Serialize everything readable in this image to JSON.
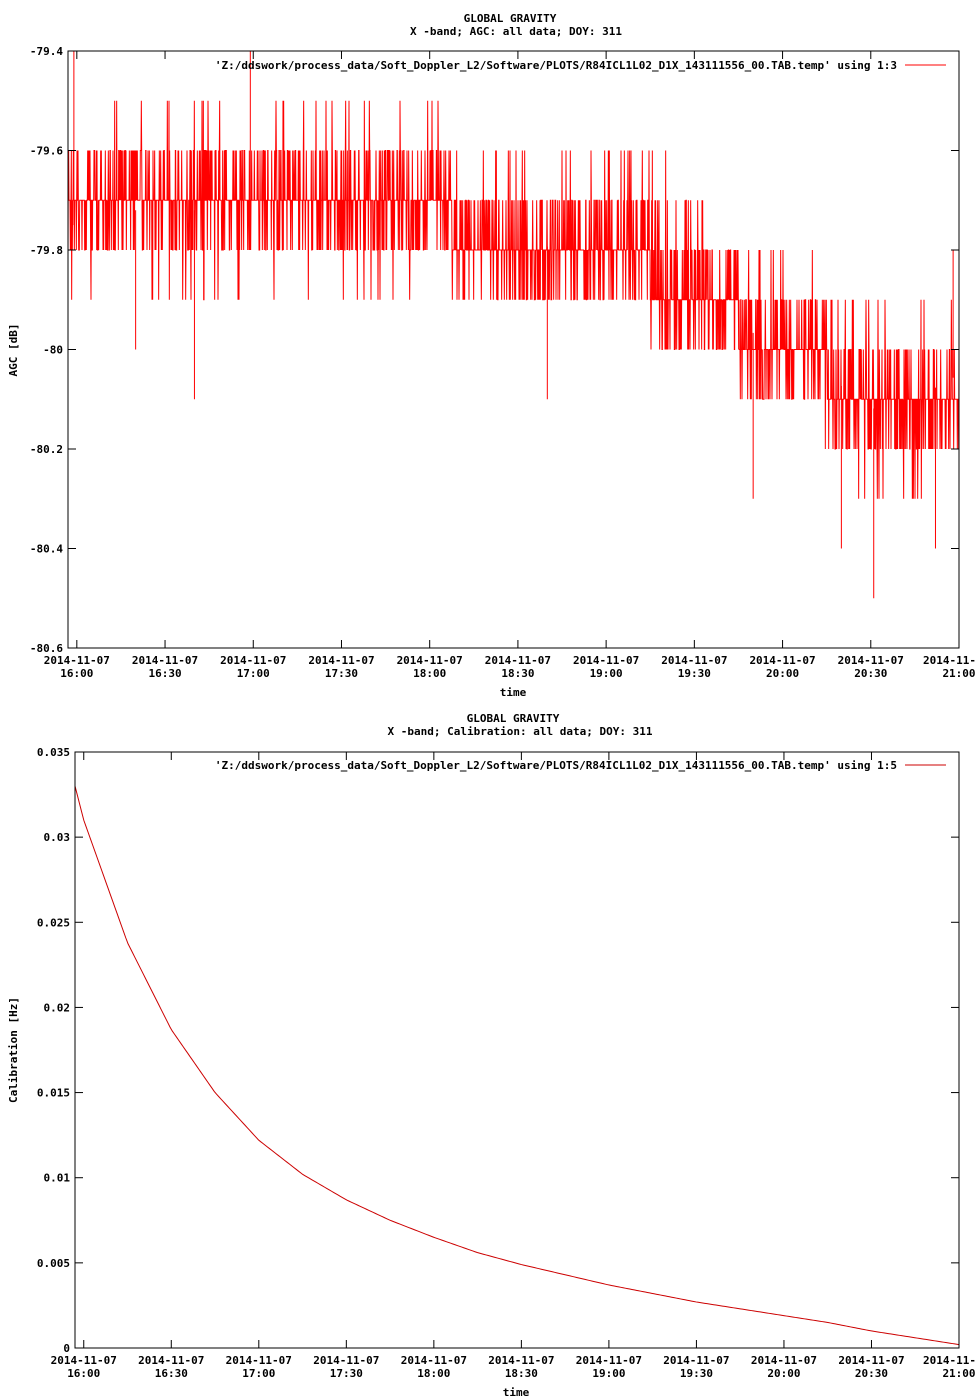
{
  "chart_data": [
    {
      "type": "line",
      "title": "GLOBAL GRAVITY",
      "subtitle": "X -band; AGC: all data; DOY: 311",
      "xlabel": "time",
      "ylabel": "AGC [dB]",
      "legend": "'Z:/ddswork/process_data/Soft_Doppler_L2/Software/PLOTS/R84ICL1L02_D1X_143111556_00.TAB.temp' using 1:3",
      "legend_position": "top-right",
      "color": "#ff0000",
      "xlim": [
        "2014-11-07 15:57",
        "2014-11-07 21:00"
      ],
      "ylim": [
        -80.6,
        -79.4
      ],
      "x_ticks": [
        {
          "date": "2014-11-07",
          "time": "16:00"
        },
        {
          "date": "2014-11-07",
          "time": "16:30"
        },
        {
          "date": "2014-11-07",
          "time": "17:00"
        },
        {
          "date": "2014-11-07",
          "time": "17:30"
        },
        {
          "date": "2014-11-07",
          "time": "18:00"
        },
        {
          "date": "2014-11-07",
          "time": "18:30"
        },
        {
          "date": "2014-11-07",
          "time": "19:00"
        },
        {
          "date": "2014-11-07",
          "time": "19:30"
        },
        {
          "date": "2014-11-07",
          "time": "20:00"
        },
        {
          "date": "2014-11-07",
          "time": "20:30"
        },
        {
          "date": "2014-11-",
          "time": "21:00"
        }
      ],
      "y_ticks": [
        "-79.4",
        "-79.6",
        "-79.8",
        "-80",
        "-80.2",
        "-80.4",
        "-80.6"
      ],
      "series": [
        {
          "x": [
            "15:57",
            "16:00",
            "16:15",
            "16:30",
            "16:45",
            "17:00",
            "17:15",
            "17:30",
            "17:45",
            "18:00",
            "18:15",
            "18:30",
            "18:45",
            "19:00",
            "19:15",
            "19:30",
            "19:45",
            "20:00",
            "20:15",
            "20:30",
            "20:45",
            "21:00"
          ],
          "values": [
            -79.75,
            -79.75,
            -79.72,
            -79.72,
            -79.72,
            -79.72,
            -79.72,
            -79.72,
            -79.73,
            -79.74,
            -79.76,
            -79.78,
            -79.8,
            -79.82,
            -79.85,
            -79.88,
            -79.95,
            -80.0,
            -80.05,
            -80.12,
            -80.1,
            -80.05
          ],
          "band_low": [
            -79.9,
            -79.9,
            -79.9,
            -79.9,
            -79.9,
            -79.88,
            -79.88,
            -79.9,
            -79.9,
            -79.9,
            -79.9,
            -79.9,
            -79.9,
            -79.9,
            -79.95,
            -80.0,
            -80.05,
            -80.1,
            -80.2,
            -80.3,
            -80.3,
            -80.2
          ],
          "band_high": [
            -79.6,
            -79.5,
            -79.5,
            -79.5,
            -79.5,
            -79.5,
            -79.5,
            -79.5,
            -79.5,
            -79.5,
            -79.6,
            -79.6,
            -79.6,
            -79.6,
            -79.6,
            -79.65,
            -79.75,
            -79.8,
            -79.85,
            -79.9,
            -79.9,
            -79.9
          ],
          "extremes": [
            {
              "x": "15:59",
              "y": -79.4
            },
            {
              "x": "16:59",
              "y": -79.4
            },
            {
              "x": "16:20",
              "y": -80.0
            },
            {
              "x": "16:40",
              "y": -80.1
            },
            {
              "x": "18:40",
              "y": -80.1
            },
            {
              "x": "19:50",
              "y": -80.3
            },
            {
              "x": "20:20",
              "y": -80.4
            },
            {
              "x": "20:31",
              "y": -80.5
            },
            {
              "x": "20:52",
              "y": -80.4
            },
            {
              "x": "20:58",
              "y": -79.8
            }
          ]
        }
      ]
    },
    {
      "type": "line",
      "title": "GLOBAL GRAVITY",
      "subtitle": "X -band; Calibration: all data; DOY: 311",
      "xlabel": "time",
      "ylabel": "Calibration [Hz]",
      "legend": "'Z:/ddswork/process_data/Soft_Doppler_L2/Software/PLOTS/R84ICL1L02_D1X_143111556_00.TAB.temp' using 1:5",
      "legend_position": "top-right",
      "color": "#cc0000",
      "xlim": [
        "2014-11-07 15:57",
        "2014-11-07 21:00"
      ],
      "ylim": [
        0,
        0.035
      ],
      "x_ticks": [
        {
          "date": "2014-11-07",
          "time": "16:00"
        },
        {
          "date": "2014-11-07",
          "time": "16:30"
        },
        {
          "date": "2014-11-07",
          "time": "17:00"
        },
        {
          "date": "2014-11-07",
          "time": "17:30"
        },
        {
          "date": "2014-11-07",
          "time": "18:00"
        },
        {
          "date": "2014-11-07",
          "time": "18:30"
        },
        {
          "date": "2014-11-07",
          "time": "19:00"
        },
        {
          "date": "2014-11-07",
          "time": "19:30"
        },
        {
          "date": "2014-11-07",
          "time": "20:00"
        },
        {
          "date": "2014-11-07",
          "time": "20:30"
        },
        {
          "date": "2014-11-",
          "time": "21:00"
        }
      ],
      "y_ticks": [
        "0",
        "0.005",
        "0.01",
        "0.015",
        "0.02",
        "0.025",
        "0.03",
        "0.035"
      ],
      "series": [
        {
          "x": [
            "15:57",
            "16:00",
            "16:15",
            "16:30",
            "16:45",
            "17:00",
            "17:15",
            "17:30",
            "17:45",
            "18:00",
            "18:15",
            "18:30",
            "18:45",
            "19:00",
            "19:15",
            "19:30",
            "19:45",
            "20:00",
            "20:15",
            "20:30",
            "20:45",
            "21:00"
          ],
          "values": [
            0.033,
            0.031,
            0.0238,
            0.0187,
            0.015,
            0.0122,
            0.0102,
            0.0087,
            0.0075,
            0.0065,
            0.0056,
            0.0049,
            0.0043,
            0.0037,
            0.0032,
            0.0027,
            0.0023,
            0.0019,
            0.0015,
            0.001,
            0.0006,
            0.0002
          ]
        }
      ]
    }
  ]
}
